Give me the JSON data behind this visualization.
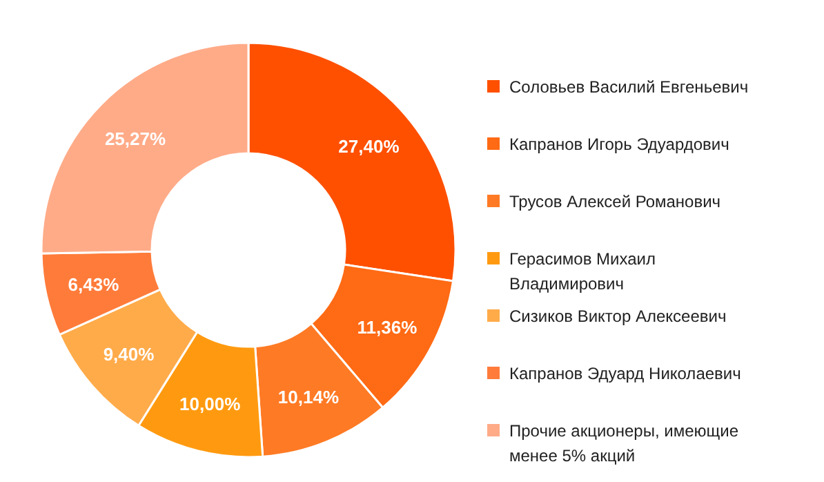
{
  "chart_data": {
    "type": "donut",
    "categories": [
      "Соловьев Василий Евгеньевич",
      "Капранов Игорь Эдуардович",
      "Трусов Алексей Романович",
      "Герасимов Михаил Владимирович",
      "Сизиков Виктор Алексеевич",
      "Капранов Эдуард Николаевич",
      "Прочие акционеры, имеющие менее 5% акций"
    ],
    "values": [
      27.4,
      11.36,
      10.14,
      10.0,
      9.4,
      6.43,
      25.27
    ],
    "colors": [
      "#ff5000",
      "#ff6a14",
      "#ff7a24",
      "#ff9a10",
      "#ffab4a",
      "#ff7b3a",
      "#ffab88"
    ],
    "value_labels": [
      "27,40%",
      "11,36%",
      "10,14%",
      "10,00%",
      "9,40%",
      "6,43%",
      "25,27%"
    ],
    "legend": "right"
  }
}
